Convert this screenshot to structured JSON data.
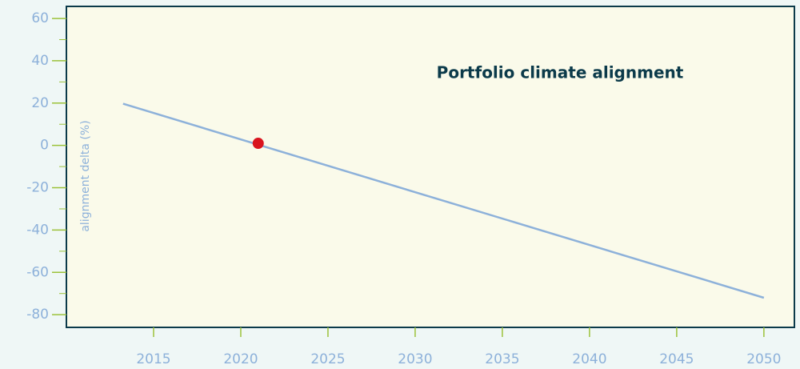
{
  "chart_data": {
    "type": "line",
    "title": "Portfolio climate alignment",
    "ylabel": "alignment delta (%)",
    "xlim": [
      2010,
      2051.75
    ],
    "xticks": [
      2015,
      2020,
      2025,
      2030,
      2035,
      2040,
      2045,
      2050
    ],
    "ylim": [
      -86,
      65.7
    ],
    "yticks": [
      60,
      40,
      20,
      0,
      -20,
      -40,
      -60,
      -80
    ],
    "yminorticks": [
      50,
      30,
      10,
      -10,
      -30,
      -50,
      -70
    ],
    "series": [
      {
        "x": [
          2013.25,
          2050
        ],
        "values": [
          19.7,
          -72
        ],
        "color": "#8db1da",
        "style": "line"
      },
      {
        "x": [
          2021
        ],
        "values": [
          1
        ],
        "color": "#d9141e",
        "style": "marker"
      }
    ]
  }
}
